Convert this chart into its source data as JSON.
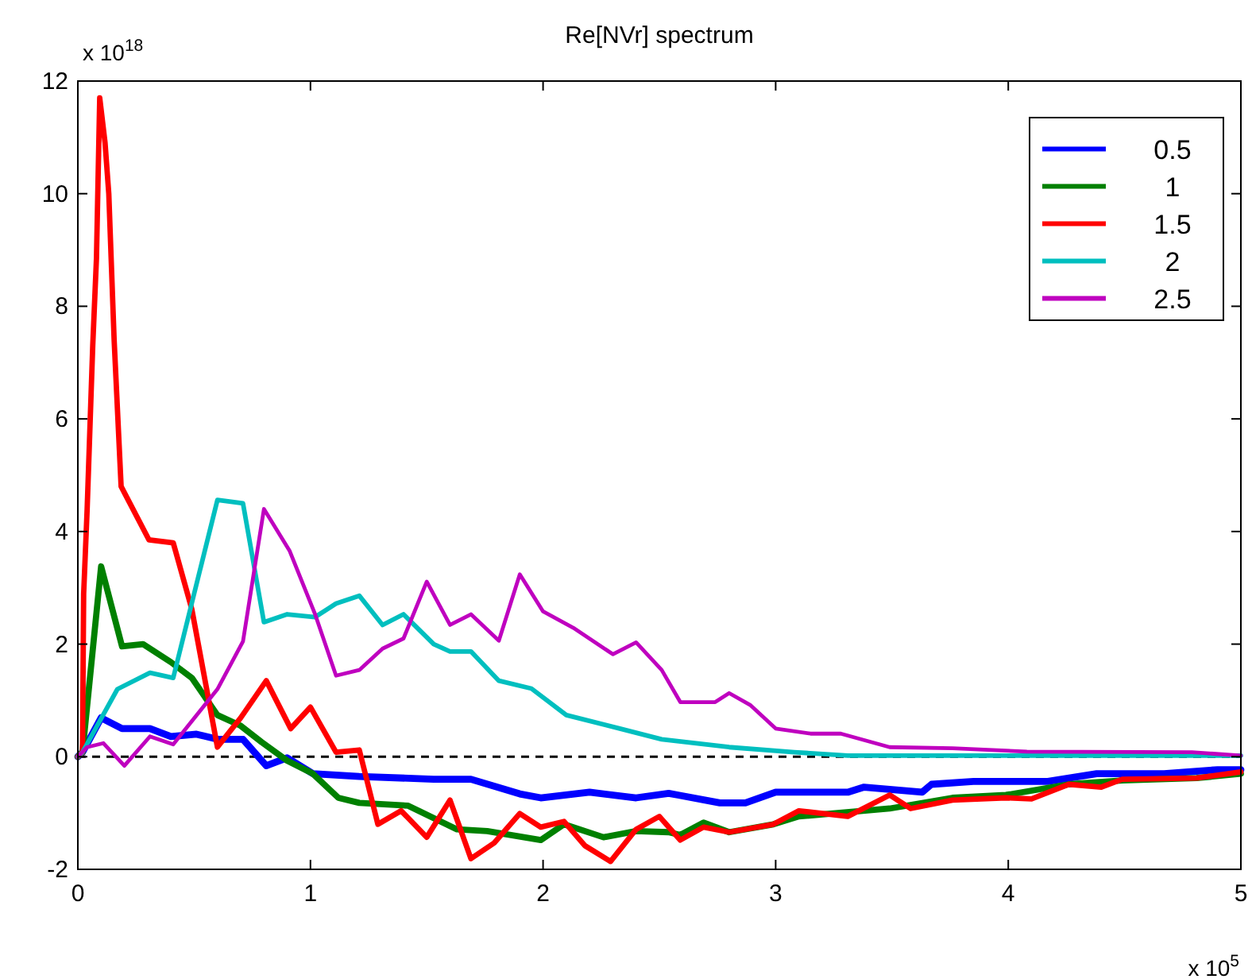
{
  "chart_data": {
    "type": "line",
    "title": "Re[NVr] spectrum",
    "annotations": [
      "x 10$^{18}$",
      "x 10$^{5}$"
    ],
    "xlim": [
      0,
      5
    ],
    "xticks": [
      0,
      1,
      2,
      3,
      4,
      5
    ],
    "ylim": [
      -2,
      12
    ],
    "yticks": [
      -2,
      0,
      2,
      4,
      6,
      8,
      10,
      12
    ],
    "grid": false,
    "legend": "top right",
    "marker": "none",
    "line_style": "solid",
    "ref_lines": [
      {
        "axis": "y",
        "value": 0,
        "color": "#000000",
        "line_style": "dashed"
      }
    ],
    "series": [
      {
        "name": "0.5",
        "color": "#0000ff",
        "x": [
          0,
          0.02,
          0.1,
          0.19,
          0.31,
          0.4,
          0.51,
          0.6,
          0.71,
          0.81,
          0.9,
          0.92,
          1.01,
          1.21,
          1.53,
          1.69,
          1.9,
          1.99,
          2.2,
          2.4,
          2.54,
          2.58,
          2.76,
          2.87,
          3.0,
          3.31,
          3.38,
          3.63,
          3.67,
          3.85,
          4.17,
          4.38,
          4.67,
          4.9,
          5
        ],
        "values": [
          0,
          0.08,
          0.69,
          0.5,
          0.5,
          0.36,
          0.4,
          0.31,
          0.31,
          -0.16,
          -0.02,
          -0.07,
          -0.3,
          -0.35,
          -0.4,
          -0.4,
          -0.66,
          -0.73,
          -0.63,
          -0.73,
          -0.65,
          -0.68,
          -0.82,
          -0.82,
          -0.63,
          -0.63,
          -0.54,
          -0.63,
          -0.49,
          -0.44,
          -0.44,
          -0.3,
          -0.3,
          -0.23,
          -0.23
        ]
      },
      {
        "name": "1",
        "color": "#008000",
        "x": [
          0,
          0.02,
          0.1,
          0.19,
          0.28,
          0.4,
          0.49,
          0.6,
          0.7,
          0.79,
          0.9,
          1.01,
          1.12,
          1.21,
          1.42,
          1.63,
          1.76,
          1.99,
          2.09,
          2.26,
          2.4,
          2.54,
          2.59,
          2.69,
          2.8,
          2.99,
          3.1,
          3.49,
          3.76,
          3.99,
          4.26,
          4.49,
          4.81,
          5
        ],
        "values": [
          0,
          0.08,
          3.38,
          1.96,
          2.0,
          1.68,
          1.4,
          0.74,
          0.55,
          0.26,
          -0.07,
          -0.3,
          -0.73,
          -0.82,
          -0.87,
          -1.29,
          -1.32,
          -1.48,
          -1.2,
          -1.43,
          -1.32,
          -1.34,
          -1.39,
          -1.17,
          -1.34,
          -1.2,
          -1.06,
          -0.92,
          -0.73,
          -0.68,
          -0.49,
          -0.42,
          -0.38,
          -0.3
        ]
      },
      {
        "name": "1.5",
        "color": "#ff0000",
        "x": [
          0,
          0.02,
          0.025,
          0.04,
          0.064,
          0.08,
          0.094,
          0.117,
          0.133,
          0.156,
          0.186,
          0.306,
          0.41,
          0.49,
          0.6,
          0.7,
          0.81,
          0.915,
          1.0,
          1.11,
          1.21,
          1.29,
          1.39,
          1.5,
          1.6,
          1.69,
          1.79,
          1.9,
          1.99,
          2.09,
          2.18,
          2.29,
          2.4,
          2.5,
          2.59,
          2.69,
          2.8,
          2.99,
          3.1,
          3.31,
          3.49,
          3.58,
          3.76,
          3.99,
          4.1,
          4.26,
          4.4,
          4.49,
          4.81,
          5
        ],
        "values": [
          0,
          0.08,
          2.9,
          4.4,
          7.3,
          8.85,
          11.7,
          10.9,
          10.0,
          7.4,
          4.8,
          3.85,
          3.8,
          2.62,
          0.17,
          0.69,
          1.35,
          0.5,
          0.88,
          0.08,
          0.12,
          -1.2,
          -0.96,
          -1.43,
          -0.77,
          -1.81,
          -1.53,
          -1.01,
          -1.25,
          -1.15,
          -1.58,
          -1.86,
          -1.29,
          -1.06,
          -1.48,
          -1.25,
          -1.34,
          -1.2,
          -0.96,
          -1.06,
          -0.68,
          -0.92,
          -0.77,
          -0.73,
          -0.75,
          -0.49,
          -0.54,
          -0.4,
          -0.38,
          -0.27
        ]
      },
      {
        "name": "2",
        "color": "#00bfbf",
        "x": [
          0,
          0.02,
          0.17,
          0.31,
          0.41,
          0.6,
          0.71,
          0.8,
          0.9,
          1.02,
          1.11,
          1.21,
          1.31,
          1.4,
          1.53,
          1.6,
          1.69,
          1.81,
          1.95,
          2.1,
          2.33,
          2.51,
          2.8,
          3.08,
          3.31,
          3.76,
          5
        ],
        "values": [
          0,
          0.08,
          1.2,
          1.49,
          1.4,
          4.56,
          4.5,
          2.39,
          2.53,
          2.48,
          2.72,
          2.86,
          2.34,
          2.53,
          2.0,
          1.87,
          1.87,
          1.35,
          1.21,
          0.74,
          0.5,
          0.31,
          0.17,
          0.08,
          0.02,
          0.02,
          0.02
        ]
      },
      {
        "name": "2.5",
        "color": "#bf00bf",
        "x": [
          0,
          0.04,
          0.11,
          0.2,
          0.31,
          0.41,
          0.6,
          0.71,
          0.8,
          0.91,
          1.02,
          1.11,
          1.21,
          1.31,
          1.4,
          1.5,
          1.6,
          1.69,
          1.81,
          1.9,
          2.0,
          2.13,
          2.3,
          2.4,
          2.51,
          2.59,
          2.74,
          2.8,
          2.89,
          3.0,
          3.15,
          3.28,
          3.49,
          3.76,
          4.08,
          4.79,
          5
        ],
        "values": [
          0,
          0.17,
          0.24,
          -0.16,
          0.36,
          0.22,
          1.2,
          2.05,
          4.4,
          3.66,
          2.53,
          1.44,
          1.54,
          1.92,
          2.1,
          3.11,
          2.34,
          2.53,
          2.06,
          3.24,
          2.58,
          2.29,
          1.82,
          2.03,
          1.54,
          0.97,
          0.97,
          1.13,
          0.92,
          0.5,
          0.41,
          0.41,
          0.17,
          0.15,
          0.09,
          0.08,
          0.02
        ]
      }
    ]
  }
}
